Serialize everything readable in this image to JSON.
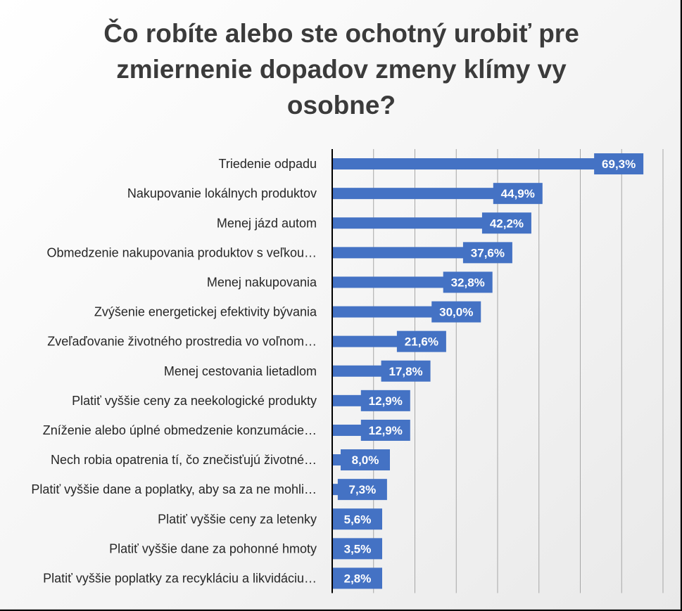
{
  "chart_data": {
    "type": "bar",
    "orientation": "horizontal",
    "title": "Čo robíte alebo ste ochotný urobiť pre zmiernenie dopadov zmeny klímy vy osobne?",
    "categories": [
      "Triedenie odpadu",
      "Nakupovanie lokálnych produktov",
      "Menej jázd autom",
      "Obmedzenie nakupovania produktov s veľkou…",
      "Menej nakupovania",
      "Zvýšenie energetickej efektivity bývania",
      "Zveľaďovanie životného prostredia vo voľnom…",
      "Menej cestovania lietadlom",
      "Platiť vyššie ceny za neekologické produkty",
      "Zníženie alebo úplné obmedzenie konzumácie…",
      "Nech robia opatrenia tí, čo znečisťujú životné…",
      "Platiť vyššie dane a poplatky, aby sa za ne mohli…",
      "Platiť vyššie ceny za letenky",
      "Platiť vyššie dane za pohonné hmoty",
      "Platiť vyššie poplatky za recykláciu a likvidáciu…"
    ],
    "values": [
      69.3,
      44.9,
      42.2,
      37.6,
      32.8,
      30.0,
      21.6,
      17.8,
      12.9,
      12.9,
      8.0,
      7.3,
      5.6,
      3.5,
      2.8
    ],
    "value_labels": [
      "69,3%",
      "44,9%",
      "42,2%",
      "37,6%",
      "32,8%",
      "30,0%",
      "21,6%",
      "17,8%",
      "12,9%",
      "12,9%",
      "8,0%",
      "7,3%",
      "5,6%",
      "3,5%",
      "2,8%"
    ],
    "xlim": [
      0,
      80
    ],
    "grid": true,
    "colors": {
      "bar": "#4472C4",
      "label_box": "#4472C4",
      "grid": "#a6a6a6",
      "axis": "#000000"
    }
  }
}
